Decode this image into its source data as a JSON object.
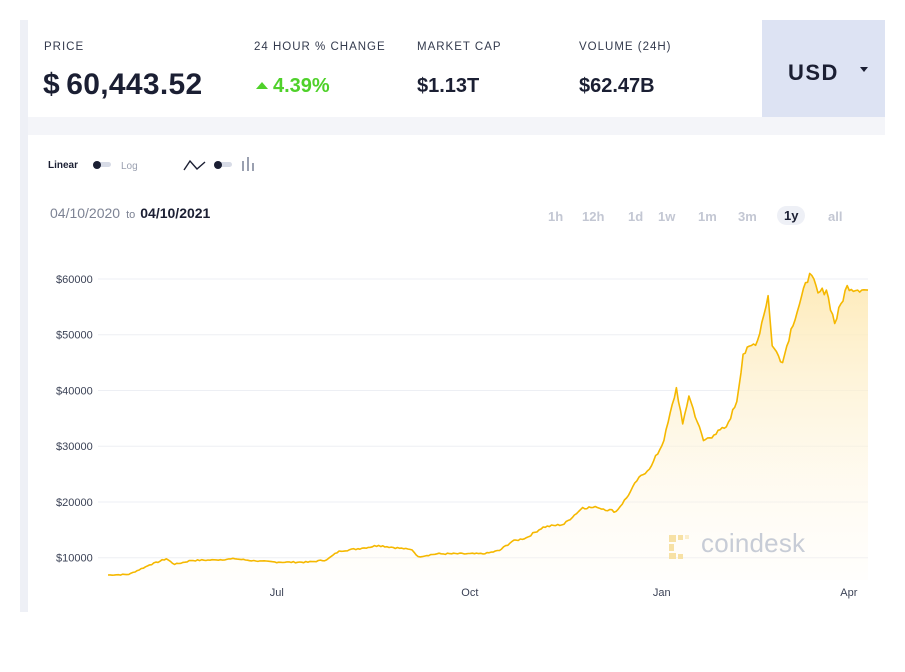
{
  "stats": {
    "price": {
      "label": "PRICE",
      "value": "$ 60,443.52"
    },
    "change": {
      "label": "24 HOUR % CHANGE",
      "value": "4.39%"
    },
    "market_cap": {
      "label": "MARKET CAP",
      "value": "$1.13T"
    },
    "volume": {
      "label": "VOLUME (24H)",
      "value": "$62.47B"
    }
  },
  "currency": {
    "code": "USD"
  },
  "controls": {
    "linear_label": "Linear",
    "log_label": "Log",
    "scale_selected": "Linear",
    "chart_style_icons": [
      "line-chart-icon",
      "bar-chart-icon"
    ]
  },
  "date_range": {
    "from": "04/10/2020",
    "to_word": "to",
    "to": "04/10/2021"
  },
  "ranges": {
    "items": [
      "1h",
      "12h",
      "1d",
      "1w",
      "1m",
      "3m",
      "1y",
      "all"
    ],
    "active": "1y"
  },
  "watermark": {
    "text": "coindesk"
  },
  "colors": {
    "line": "#f5b800",
    "area_top": "#fdeec2",
    "positive": "#4fd12a",
    "currency_bg": "#dde3f3"
  },
  "chart_data": {
    "type": "area",
    "title": "",
    "xlabel": "",
    "ylabel": "",
    "x_tick_labels": [
      "Jul",
      "Oct",
      "Jan",
      "Apr"
    ],
    "y_tick_labels": [
      "$10000",
      "$20000",
      "$30000",
      "$40000",
      "$50000",
      "$60000"
    ],
    "y_ticks": [
      10000,
      20000,
      30000,
      40000,
      50000,
      60000
    ],
    "ylim": [
      6000,
      62500
    ],
    "xlim": [
      "2020-04-10",
      "2021-04-10"
    ],
    "grid": true,
    "series": [
      {
        "name": "",
        "points": [
          [
            "2020-04-10",
            6900
          ],
          [
            "2020-04-20",
            7000
          ],
          [
            "2020-04-30",
            8700
          ],
          [
            "2020-05-08",
            9800
          ],
          [
            "2020-05-12",
            8800
          ],
          [
            "2020-05-20",
            9500
          ],
          [
            "2020-06-01",
            9600
          ],
          [
            "2020-06-10",
            9800
          ],
          [
            "2020-06-20",
            9400
          ],
          [
            "2020-07-01",
            9200
          ],
          [
            "2020-07-15",
            9200
          ],
          [
            "2020-07-24",
            9600
          ],
          [
            "2020-07-30",
            11200
          ],
          [
            "2020-08-10",
            11700
          ],
          [
            "2020-08-18",
            12200
          ],
          [
            "2020-08-30",
            11600
          ],
          [
            "2020-09-03",
            11400
          ],
          [
            "2020-09-06",
            10200
          ],
          [
            "2020-09-15",
            10700
          ],
          [
            "2020-09-25",
            10700
          ],
          [
            "2020-10-08",
            10700
          ],
          [
            "2020-10-15",
            11300
          ],
          [
            "2020-10-21",
            12900
          ],
          [
            "2020-10-28",
            13600
          ],
          [
            "2020-11-05",
            15500
          ],
          [
            "2020-11-15",
            16000
          ],
          [
            "2020-11-24",
            19000
          ],
          [
            "2020-12-01",
            19000
          ],
          [
            "2020-12-10",
            18300
          ],
          [
            "2020-12-16",
            21200
          ],
          [
            "2020-12-20",
            23800
          ],
          [
            "2020-12-27",
            26500
          ],
          [
            "2021-01-02",
            31000
          ],
          [
            "2021-01-08",
            40500
          ],
          [
            "2021-01-11",
            34000
          ],
          [
            "2021-01-14",
            39000
          ],
          [
            "2021-01-21",
            31000
          ],
          [
            "2021-01-26",
            32000
          ],
          [
            "2021-02-01",
            33500
          ],
          [
            "2021-02-06",
            38000
          ],
          [
            "2021-02-09",
            46500
          ],
          [
            "2021-02-16",
            49000
          ],
          [
            "2021-02-21",
            57000
          ],
          [
            "2021-02-23",
            48000
          ],
          [
            "2021-02-28",
            45000
          ],
          [
            "2021-03-04",
            51000
          ],
          [
            "2021-03-13",
            61000
          ],
          [
            "2021-03-17",
            57500
          ],
          [
            "2021-03-21",
            58000
          ],
          [
            "2021-03-25",
            52000
          ],
          [
            "2021-03-31",
            58800
          ],
          [
            "2021-04-05",
            58000
          ],
          [
            "2021-04-10",
            58000
          ]
        ]
      }
    ]
  }
}
